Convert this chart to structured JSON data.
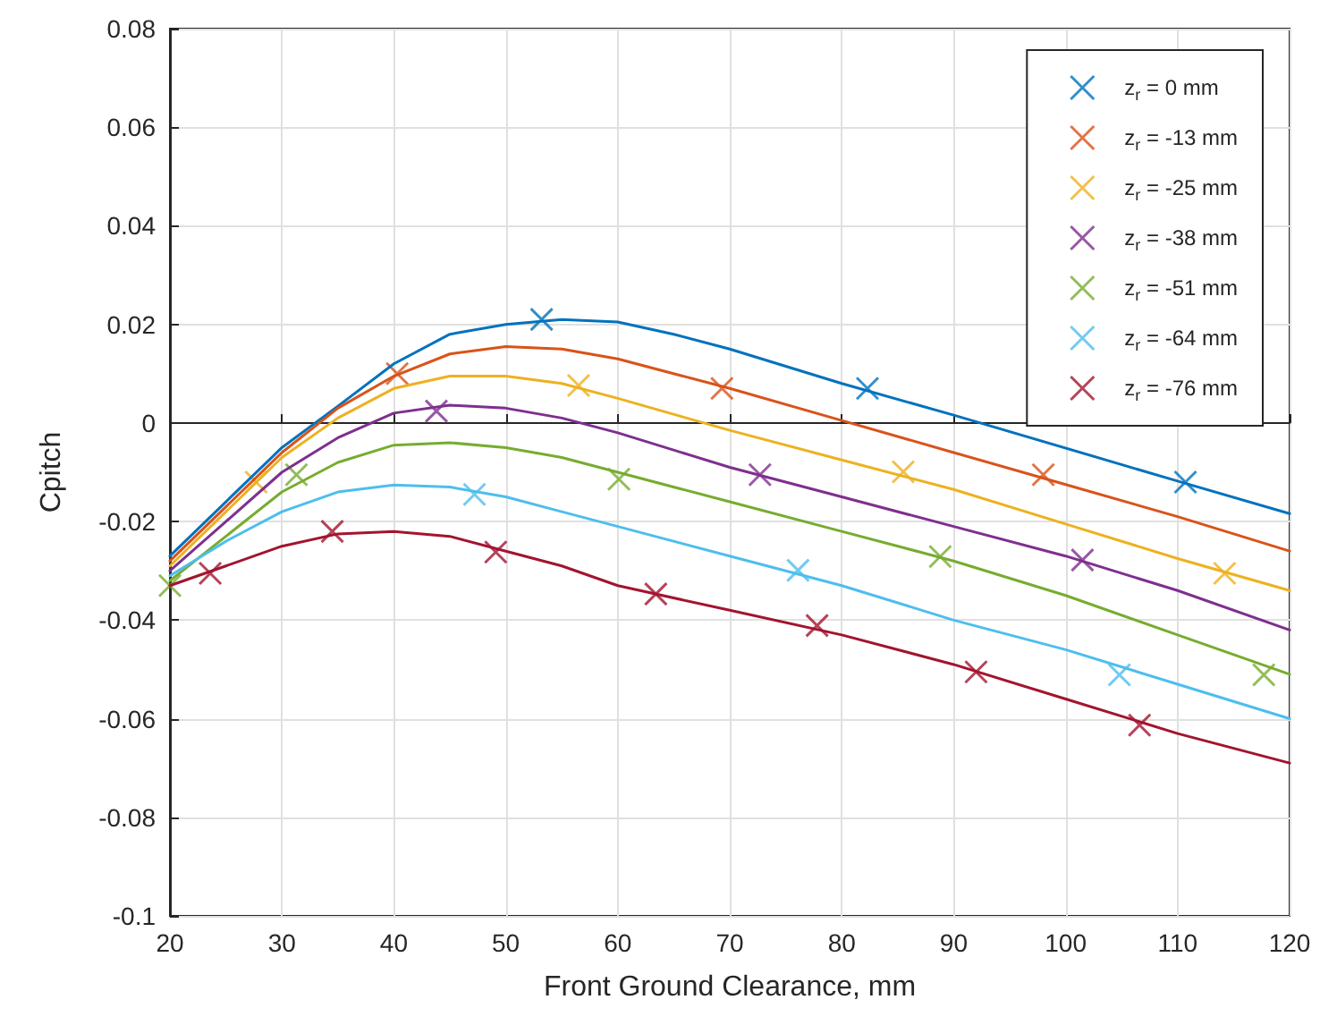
{
  "chart_data": {
    "type": "scatter",
    "xlabel": "Front Ground Clearance, mm",
    "ylabel": "Cpitch",
    "xlim": [
      20,
      120
    ],
    "xticks": [
      20,
      30,
      40,
      50,
      60,
      70,
      80,
      90,
      100,
      110,
      120
    ],
    "ylim": [
      -0.1,
      0.08
    ],
    "yticks": [
      -0.1,
      -0.08,
      -0.06,
      -0.04,
      -0.02,
      0,
      0.02,
      0.04,
      0.06,
      0.08
    ],
    "grid": true,
    "legend": "top right",
    "marker": "cross",
    "series": [
      {
        "name": "z$_{r}$ = 0 mm",
        "color": "#0072bd",
        "x": [
          53.2,
          82.3,
          110.7
        ],
        "values": [
          0.021,
          0.007,
          -0.012
        ]
      },
      {
        "name": "z$_{r}$ = -13 mm",
        "color": "#d95319",
        "x": [
          40.3,
          69.3,
          98.0
        ],
        "values": [
          0.01,
          0.007,
          -0.0105
        ]
      },
      {
        "name": "z$_{r}$ = -25 mm",
        "color": "#edb120",
        "x": [
          27.7,
          56.5,
          85.5,
          114.2
        ],
        "values": [
          -0.012,
          0.0076,
          -0.0099,
          -0.0305
        ]
      },
      {
        "name": "z$_{r}$ = -38 mm",
        "color": "#7e2f8e",
        "x": [
          43.8,
          72.7,
          101.5
        ],
        "values": [
          0.0024,
          -0.0105,
          -0.0278
        ]
      },
      {
        "name": "z$_{r}$ = -51 mm",
        "color": "#77ac30",
        "x": [
          20.0,
          31.3,
          60.1,
          88.8,
          117.7
        ],
        "values": [
          -0.033,
          -0.0105,
          -0.0114,
          -0.0271,
          -0.0511
        ]
      },
      {
        "name": "z$_{r}$ = -64 mm",
        "color": "#4dbeee",
        "x": [
          47.2,
          76.1,
          104.8
        ],
        "values": [
          -0.0145,
          -0.0299,
          -0.0511
        ]
      },
      {
        "name": "z$_{r}$ = -76 mm",
        "color": "#a2142f",
        "x": [
          23.6,
          34.5,
          49.1,
          63.4,
          77.8,
          92.0,
          106.6
        ],
        "values": [
          -0.0305,
          -0.022,
          -0.0262,
          -0.0347,
          -0.0411,
          -0.0505,
          -0.0613
        ]
      },
      {
        "color": "#0072bd",
        "type": "line",
        "marker": "none",
        "line_style": "solid",
        "x": [
          20,
          25,
          30,
          35,
          40,
          45,
          50,
          55,
          60,
          65,
          70,
          80,
          90,
          100,
          110,
          120
        ],
        "values": [
          -0.027,
          -0.016,
          -0.005,
          0.0034,
          0.012,
          0.018,
          0.02,
          0.021,
          0.0205,
          0.018,
          0.015,
          0.008,
          0.0016,
          null,
          -0.0118,
          -0.0184
        ]
      },
      {
        "color": "#d95319",
        "type": "line",
        "marker": "none",
        "line_style": "solid",
        "x": [
          20,
          25,
          30,
          35,
          40,
          45,
          50,
          55,
          60,
          70,
          80,
          90,
          100,
          110,
          120
        ],
        "values": [
          -0.028,
          -0.017,
          -0.006,
          0.003,
          0.0095,
          0.014,
          0.0155,
          0.015,
          0.013,
          0.007,
          0.0005,
          -0.006,
          -0.0125,
          -0.019,
          -0.026
        ]
      },
      {
        "color": "#edb120",
        "type": "line",
        "marker": "none",
        "line_style": "solid",
        "x": [
          20,
          25,
          30,
          35,
          40,
          45,
          50,
          55,
          60,
          70,
          80,
          90,
          100,
          110,
          120
        ],
        "values": [
          -0.029,
          -0.018,
          -0.007,
          0.001,
          0.007,
          0.0095,
          0.0095,
          0.008,
          0.005,
          -0.0015,
          -0.0075,
          -0.0135,
          -0.0205,
          -0.0275,
          -0.034
        ]
      },
      {
        "color": "#7e2f8e",
        "type": "line",
        "marker": "none",
        "line_style": "solid",
        "x": [
          20,
          25,
          30,
          35,
          40,
          45,
          50,
          55,
          60,
          70,
          80,
          90,
          100,
          110,
          120
        ],
        "values": [
          -0.03,
          -0.02,
          -0.01,
          -0.003,
          0.002,
          0.0036,
          0.003,
          0.001,
          -0.002,
          -0.009,
          -0.015,
          -0.021,
          -0.027,
          -0.034,
          -0.042
        ]
      },
      {
        "color": "#77ac30",
        "type": "line",
        "marker": "none",
        "line_style": "solid",
        "x": [
          20,
          25,
          30,
          35,
          40,
          45,
          50,
          55,
          60,
          70,
          80,
          90,
          100,
          110,
          120
        ],
        "values": [
          -0.032,
          -0.023,
          -0.014,
          -0.008,
          -0.0045,
          -0.004,
          -0.005,
          -0.007,
          -0.01,
          -0.016,
          -0.022,
          -0.028,
          -0.035,
          -0.043,
          -0.051
        ]
      },
      {
        "color": "#4dbeee",
        "type": "line",
        "marker": "none",
        "line_style": "solid",
        "x": [
          20,
          25,
          30,
          35,
          40,
          45,
          50,
          55,
          60,
          70,
          80,
          90,
          100,
          110,
          120
        ],
        "values": [
          -0.031,
          -0.024,
          -0.018,
          -0.014,
          -0.0126,
          -0.013,
          -0.015,
          -0.018,
          -0.021,
          -0.027,
          -0.033,
          -0.04,
          -0.046,
          -0.053,
          -0.06
        ]
      },
      {
        "color": "#a2142f",
        "type": "line",
        "marker": "none",
        "line_style": "solid",
        "x": [
          20,
          25,
          30,
          35,
          40,
          45,
          50,
          55,
          60,
          70,
          80,
          90,
          100,
          110,
          120
        ],
        "values": [
          -0.033,
          -0.029,
          -0.025,
          -0.0225,
          -0.022,
          -0.023,
          -0.026,
          -0.029,
          -0.033,
          -0.038,
          -0.043,
          -0.049,
          -0.056,
          -0.063,
          -0.069
        ]
      }
    ]
  }
}
